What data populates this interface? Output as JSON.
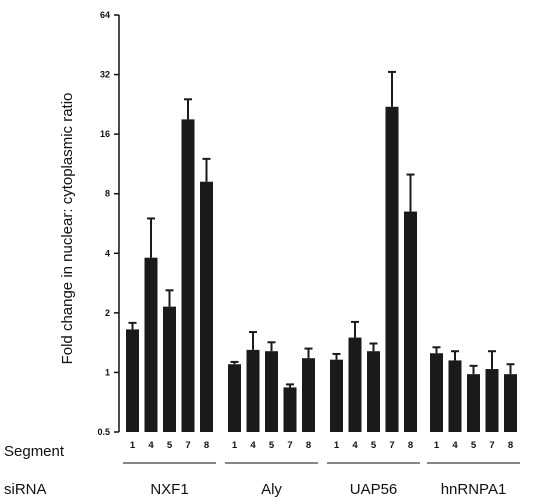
{
  "chart_data": {
    "type": "bar",
    "scale": "log2",
    "ylabel": "Fold change in nuclear: cytoplasmic ratio",
    "yticks": [
      "0.5",
      "1",
      "2",
      "4",
      "8",
      "16",
      "32",
      "64"
    ],
    "ylim": [
      0.5,
      64
    ],
    "row_labels": {
      "segment": "Segment",
      "sirna": "siRNA"
    },
    "groups": [
      {
        "name": "NXF1",
        "segments": [
          "1",
          "4",
          "5",
          "7",
          "8"
        ],
        "values": [
          1.65,
          3.8,
          2.15,
          19.0,
          9.2
        ],
        "errors": [
          1.78,
          6.0,
          2.6,
          24.0,
          12.0
        ]
      },
      {
        "name": "Aly",
        "segments": [
          "1",
          "4",
          "5",
          "7",
          "8"
        ],
        "values": [
          1.1,
          1.3,
          1.28,
          0.84,
          1.18
        ],
        "errors": [
          1.13,
          1.6,
          1.42,
          0.87,
          1.32
        ]
      },
      {
        "name": "UAP56",
        "segments": [
          "1",
          "4",
          "5",
          "7",
          "8"
        ],
        "values": [
          1.16,
          1.5,
          1.28,
          22.0,
          6.5
        ],
        "errors": [
          1.24,
          1.8,
          1.4,
          33.0,
          10.0
        ]
      },
      {
        "name": "hnRNPA1",
        "segments": [
          "1",
          "4",
          "5",
          "7",
          "8"
        ],
        "values": [
          1.25,
          1.15,
          0.98,
          1.04,
          0.98
        ],
        "errors": [
          1.34,
          1.28,
          1.08,
          1.28,
          1.1
        ]
      }
    ],
    "bar_color": "#1a1a1a",
    "grid": false,
    "legend": "none"
  }
}
